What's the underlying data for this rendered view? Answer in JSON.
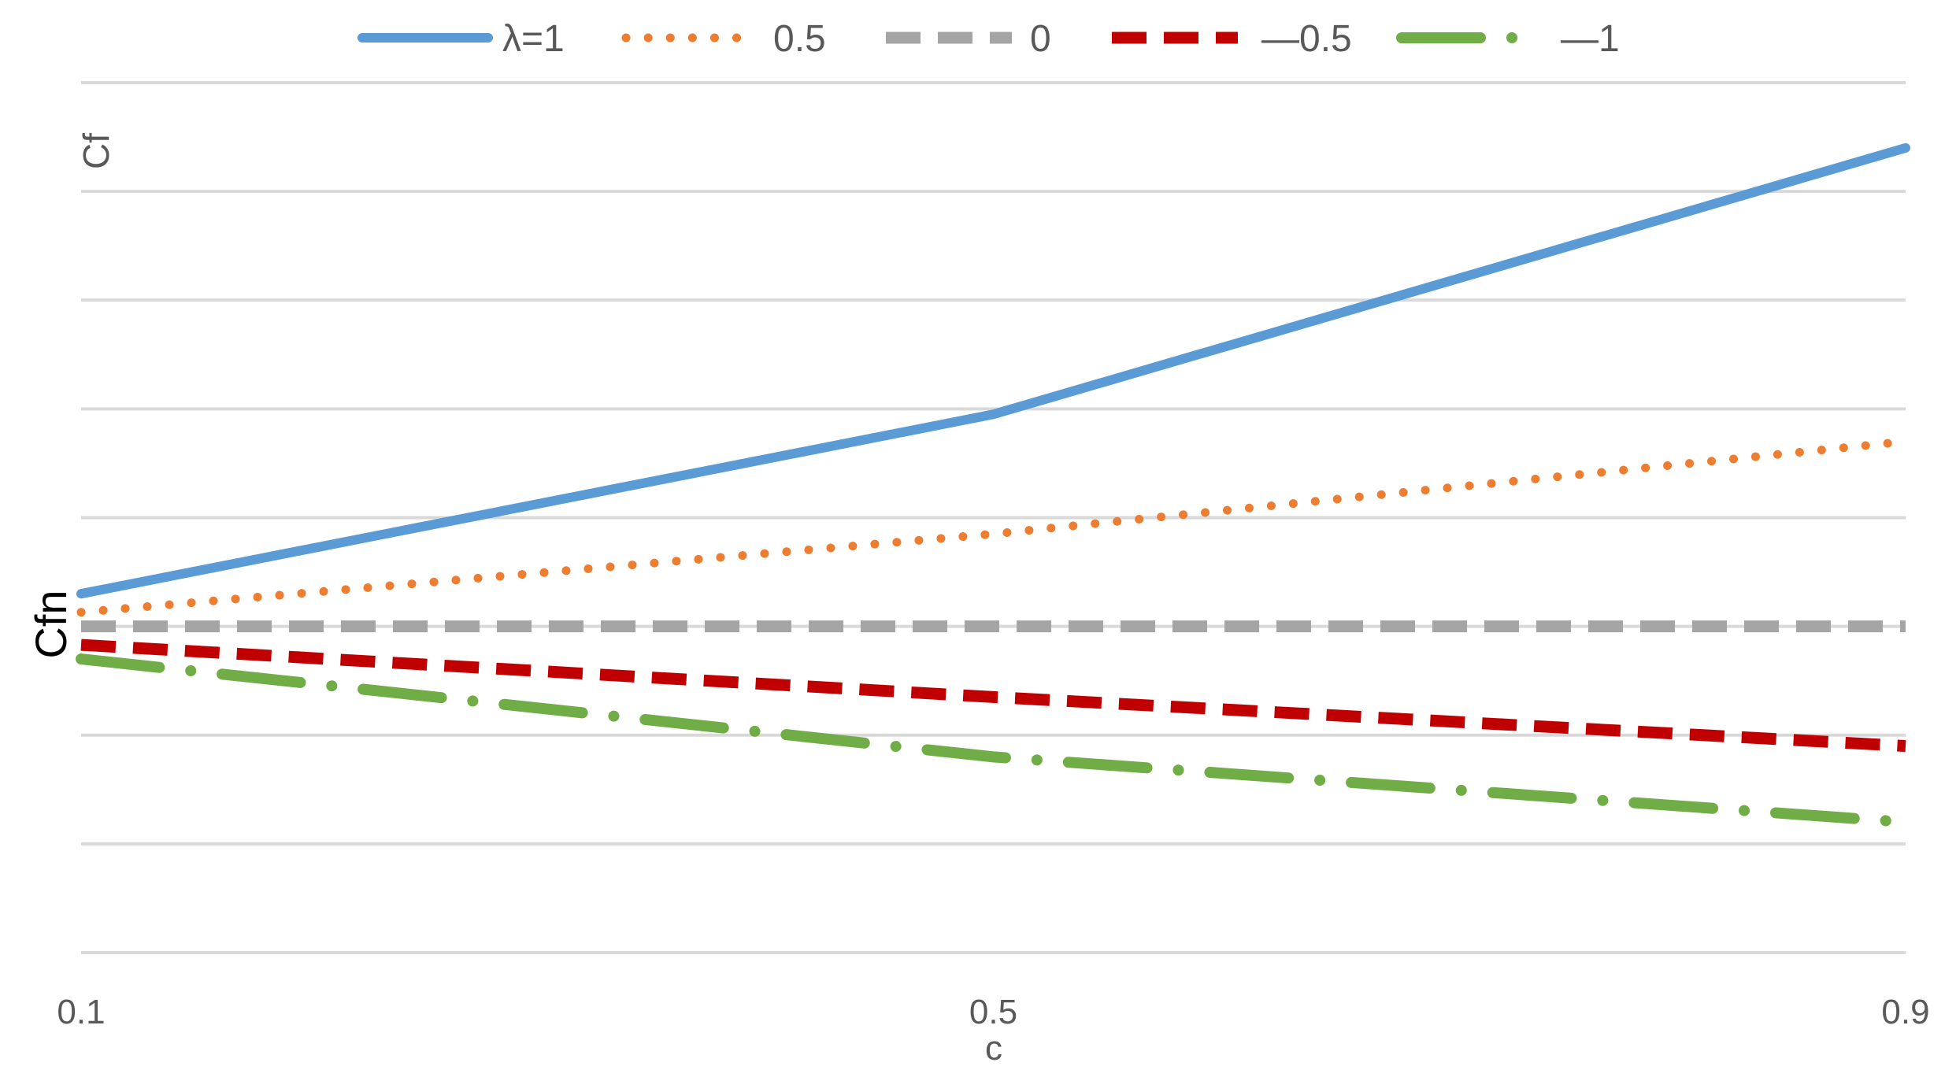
{
  "chart_data": {
    "type": "line",
    "xlabel": "c",
    "ylabel_top": "Cf",
    "ylabel_mid": "Cfn",
    "x_ticks": [
      "0.1",
      "0.5",
      "0.9"
    ],
    "x": [
      0.1,
      0.5,
      0.9
    ],
    "xlim": [
      0.1,
      0.9
    ],
    "ylim": [
      -3,
      5
    ],
    "gridlines": [
      -3,
      -2,
      -1,
      0,
      1,
      2,
      3,
      4,
      5
    ],
    "grid": true,
    "legend_position": "top",
    "series": [
      {
        "name": "λ=1",
        "style": "solid",
        "color": "#5b9bd5",
        "values": [
          0.3,
          1.95,
          4.4
        ]
      },
      {
        "name": "0.5",
        "style": "dotted",
        "color": "#ed7d31",
        "values": [
          0.13,
          0.85,
          1.7
        ]
      },
      {
        "name": "0",
        "style": "dashed",
        "color": "#a5a5a5",
        "values": [
          0,
          0,
          0
        ]
      },
      {
        "name": "—0.5",
        "style": "dashed",
        "color": "#c00000",
        "values": [
          -0.17,
          -0.65,
          -1.1
        ]
      },
      {
        "name": "—1",
        "style": "dashdot",
        "color": "#70ad47",
        "values": [
          -0.3,
          -1.2,
          -1.8
        ]
      }
    ]
  }
}
